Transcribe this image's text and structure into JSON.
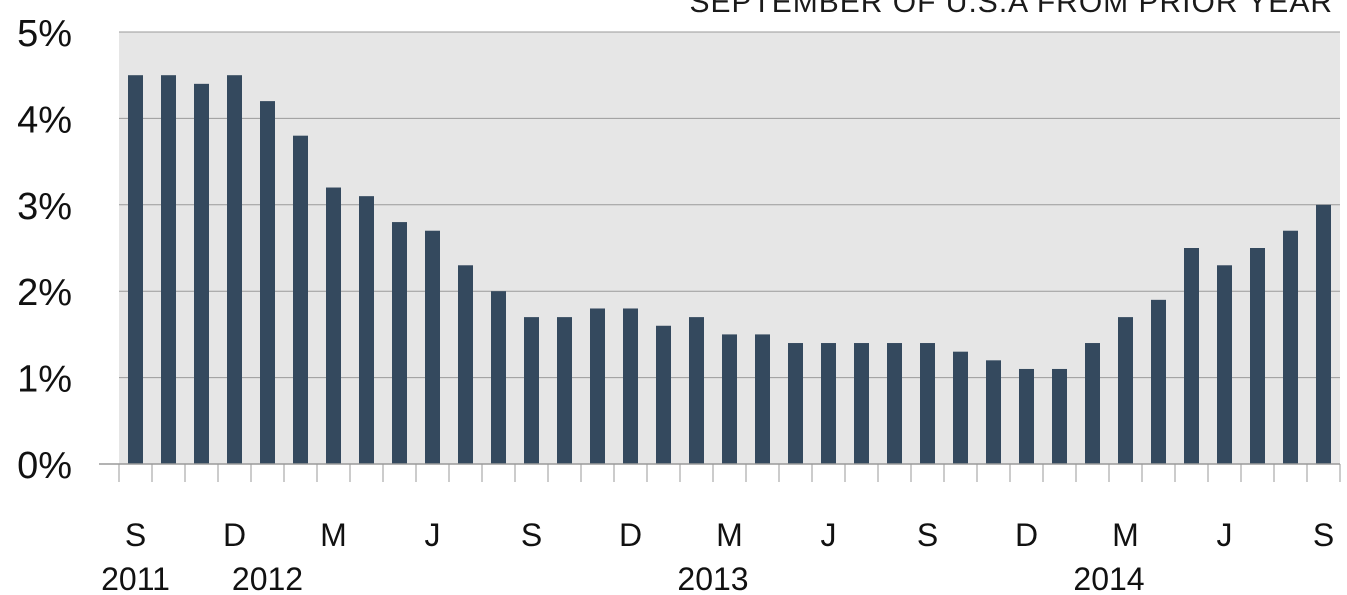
{
  "chart_data": {
    "type": "bar",
    "title": "SEPTEMBER OF U.S.A FROM PRIOR YEAR",
    "ylabel": "",
    "xlabel": "",
    "ylim": [
      0,
      5
    ],
    "y_ticks": [
      "0%",
      "1%",
      "2%",
      "3%",
      "4%",
      "5%"
    ],
    "grid": true,
    "categories": [
      "Sep 2011",
      "Oct 2011",
      "Nov 2011",
      "Dec 2011",
      "Jan 2012",
      "Feb 2012",
      "Mar 2012",
      "Apr 2012",
      "May 2012",
      "Jun 2012",
      "Jul 2012",
      "Aug 2012",
      "Sep 2012",
      "Oct 2012",
      "Nov 2012",
      "Dec 2012",
      "Jan 2013",
      "Feb 2013",
      "Mar 2013",
      "Apr 2013",
      "May 2013",
      "Jun 2013",
      "Jul 2013",
      "Aug 2013",
      "Sep 2013",
      "Oct 2013",
      "Nov 2013",
      "Dec 2013",
      "Jan 2014",
      "Feb 2014",
      "Mar 2014",
      "Apr 2014",
      "May 2014",
      "Jun 2014",
      "Jul 2014",
      "Aug 2014",
      "Sep 2014"
    ],
    "values": [
      4.5,
      4.5,
      4.4,
      4.5,
      4.2,
      3.8,
      3.2,
      3.1,
      2.8,
      2.7,
      2.3,
      2.0,
      1.7,
      1.7,
      1.8,
      1.8,
      1.6,
      1.7,
      1.5,
      1.5,
      1.4,
      1.4,
      1.4,
      1.4,
      1.4,
      1.3,
      1.2,
      1.1,
      1.1,
      1.4,
      1.7,
      1.9,
      2.5,
      2.3,
      2.5,
      2.7,
      3.0
    ],
    "x_month_labels": [
      {
        "index": 0,
        "text": "S"
      },
      {
        "index": 3,
        "text": "D"
      },
      {
        "index": 6,
        "text": "M"
      },
      {
        "index": 9,
        "text": "J"
      },
      {
        "index": 12,
        "text": "S"
      },
      {
        "index": 15,
        "text": "D"
      },
      {
        "index": 18,
        "text": "M"
      },
      {
        "index": 21,
        "text": "J"
      },
      {
        "index": 24,
        "text": "S"
      },
      {
        "index": 27,
        "text": "D"
      },
      {
        "index": 30,
        "text": "M"
      },
      {
        "index": 33,
        "text": "J"
      },
      {
        "index": 36,
        "text": "S"
      }
    ],
    "x_year_labels": [
      {
        "index": 0,
        "text": "2011"
      },
      {
        "index": 4,
        "text": "2012"
      },
      {
        "index": 17.5,
        "text": "2013"
      },
      {
        "index": 29.5,
        "text": "2014"
      }
    ],
    "colors": {
      "bar": "#34495e",
      "plot_background": "#e6e6e6",
      "grid": "#9a9a9a",
      "axis": "#9a9a9a"
    }
  }
}
